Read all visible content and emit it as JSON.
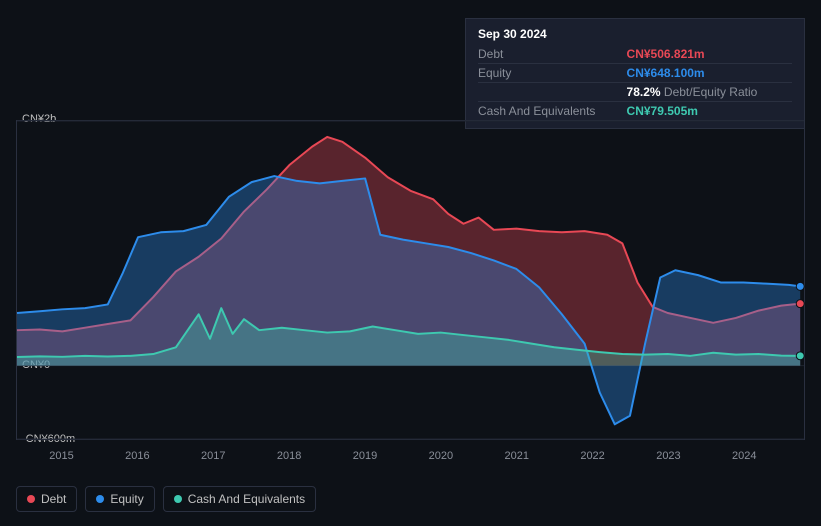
{
  "tooltip": {
    "date": "Sep 30 2024",
    "rows": {
      "debt_label": "Debt",
      "debt_value": "CN¥506.821m",
      "equity_label": "Equity",
      "equity_value": "CN¥648.100m",
      "ratio_pct": "78.2%",
      "ratio_label": "Debt/Equity Ratio",
      "cash_label": "Cash And Equivalents",
      "cash_value": "CN¥79.505m"
    }
  },
  "chart": {
    "type": "area",
    "background_color": "#0d1117",
    "grid_color": "#1e2430",
    "border_color": "#2a3040",
    "ylim": [
      -600,
      2000
    ],
    "y_ticks": [
      {
        "value": 2000,
        "label": "CN¥2b"
      },
      {
        "value": 0,
        "label": "CN¥0"
      },
      {
        "value": -600,
        "label": "-CN¥600m"
      }
    ],
    "x_years": [
      2015,
      2016,
      2017,
      2018,
      2019,
      2020,
      2021,
      2022,
      2023,
      2024
    ],
    "x_domain": [
      2014.4,
      2024.8
    ],
    "label_fontsize": 11,
    "label_color": "#8a8f99",
    "series": {
      "debt": {
        "label": "Debt",
        "color": "#e84855",
        "fill_opacity": 0.35,
        "line_width": 2,
        "data": [
          [
            2014.4,
            290
          ],
          [
            2014.7,
            295
          ],
          [
            2015.0,
            280
          ],
          [
            2015.3,
            310
          ],
          [
            2015.6,
            340
          ],
          [
            2015.9,
            370
          ],
          [
            2016.2,
            560
          ],
          [
            2016.5,
            770
          ],
          [
            2016.8,
            890
          ],
          [
            2017.1,
            1040
          ],
          [
            2017.4,
            1260
          ],
          [
            2017.7,
            1440
          ],
          [
            2018.0,
            1640
          ],
          [
            2018.3,
            1790
          ],
          [
            2018.5,
            1870
          ],
          [
            2018.7,
            1830
          ],
          [
            2019.0,
            1700
          ],
          [
            2019.3,
            1540
          ],
          [
            2019.6,
            1430
          ],
          [
            2019.9,
            1360
          ],
          [
            2020.1,
            1240
          ],
          [
            2020.3,
            1160
          ],
          [
            2020.5,
            1210
          ],
          [
            2020.7,
            1110
          ],
          [
            2021.0,
            1120
          ],
          [
            2021.3,
            1100
          ],
          [
            2021.6,
            1090
          ],
          [
            2021.9,
            1100
          ],
          [
            2022.2,
            1070
          ],
          [
            2022.4,
            1000
          ],
          [
            2022.6,
            680
          ],
          [
            2022.8,
            480
          ],
          [
            2023.0,
            430
          ],
          [
            2023.3,
            390
          ],
          [
            2023.6,
            350
          ],
          [
            2023.9,
            390
          ],
          [
            2024.2,
            450
          ],
          [
            2024.5,
            490
          ],
          [
            2024.75,
            507
          ]
        ]
      },
      "equity": {
        "label": "Equity",
        "color": "#2d8ceb",
        "fill_opacity": 0.35,
        "line_width": 2,
        "data": [
          [
            2014.4,
            430
          ],
          [
            2014.7,
            445
          ],
          [
            2015.0,
            460
          ],
          [
            2015.3,
            470
          ],
          [
            2015.6,
            500
          ],
          [
            2015.8,
            760
          ],
          [
            2016.0,
            1050
          ],
          [
            2016.3,
            1090
          ],
          [
            2016.6,
            1100
          ],
          [
            2016.9,
            1150
          ],
          [
            2017.2,
            1380
          ],
          [
            2017.5,
            1500
          ],
          [
            2017.8,
            1550
          ],
          [
            2018.1,
            1510
          ],
          [
            2018.4,
            1490
          ],
          [
            2018.7,
            1510
          ],
          [
            2019.0,
            1530
          ],
          [
            2019.2,
            1070
          ],
          [
            2019.5,
            1030
          ],
          [
            2019.8,
            1000
          ],
          [
            2020.1,
            970
          ],
          [
            2020.4,
            920
          ],
          [
            2020.7,
            860
          ],
          [
            2021.0,
            790
          ],
          [
            2021.3,
            640
          ],
          [
            2021.6,
            420
          ],
          [
            2021.9,
            180
          ],
          [
            2022.1,
            -220
          ],
          [
            2022.3,
            -480
          ],
          [
            2022.5,
            -410
          ],
          [
            2022.7,
            180
          ],
          [
            2022.9,
            720
          ],
          [
            2023.1,
            780
          ],
          [
            2023.4,
            740
          ],
          [
            2023.7,
            680
          ],
          [
            2024.0,
            680
          ],
          [
            2024.3,
            670
          ],
          [
            2024.6,
            660
          ],
          [
            2024.75,
            648
          ]
        ]
      },
      "cash": {
        "label": "Cash And Equivalents",
        "color": "#3ec9b0",
        "fill_opacity": 0.35,
        "line_width": 2,
        "data": [
          [
            2014.4,
            70
          ],
          [
            2014.7,
            75
          ],
          [
            2015.0,
            72
          ],
          [
            2015.3,
            80
          ],
          [
            2015.6,
            74
          ],
          [
            2015.9,
            80
          ],
          [
            2016.2,
            95
          ],
          [
            2016.5,
            150
          ],
          [
            2016.8,
            420
          ],
          [
            2016.95,
            220
          ],
          [
            2017.1,
            470
          ],
          [
            2017.25,
            260
          ],
          [
            2017.4,
            380
          ],
          [
            2017.6,
            290
          ],
          [
            2017.9,
            310
          ],
          [
            2018.2,
            290
          ],
          [
            2018.5,
            270
          ],
          [
            2018.8,
            280
          ],
          [
            2019.1,
            320
          ],
          [
            2019.4,
            290
          ],
          [
            2019.7,
            260
          ],
          [
            2020.0,
            270
          ],
          [
            2020.3,
            250
          ],
          [
            2020.6,
            230
          ],
          [
            2020.9,
            210
          ],
          [
            2021.2,
            180
          ],
          [
            2021.5,
            150
          ],
          [
            2021.8,
            130
          ],
          [
            2022.1,
            110
          ],
          [
            2022.4,
            95
          ],
          [
            2022.7,
            90
          ],
          [
            2023.0,
            95
          ],
          [
            2023.3,
            80
          ],
          [
            2023.6,
            105
          ],
          [
            2023.9,
            90
          ],
          [
            2024.2,
            95
          ],
          [
            2024.5,
            82
          ],
          [
            2024.75,
            80
          ]
        ]
      }
    },
    "end_dots": [
      {
        "series": "equity",
        "color": "#2d8ceb"
      },
      {
        "series": "debt",
        "color": "#e84855"
      },
      {
        "series": "cash",
        "color": "#3ec9b0"
      }
    ]
  },
  "legend": {
    "items": [
      {
        "key": "debt",
        "label": "Debt",
        "color": "#e84855"
      },
      {
        "key": "equity",
        "label": "Equity",
        "color": "#2d8ceb"
      },
      {
        "key": "cash",
        "label": "Cash And Equivalents",
        "color": "#3ec9b0"
      }
    ]
  }
}
